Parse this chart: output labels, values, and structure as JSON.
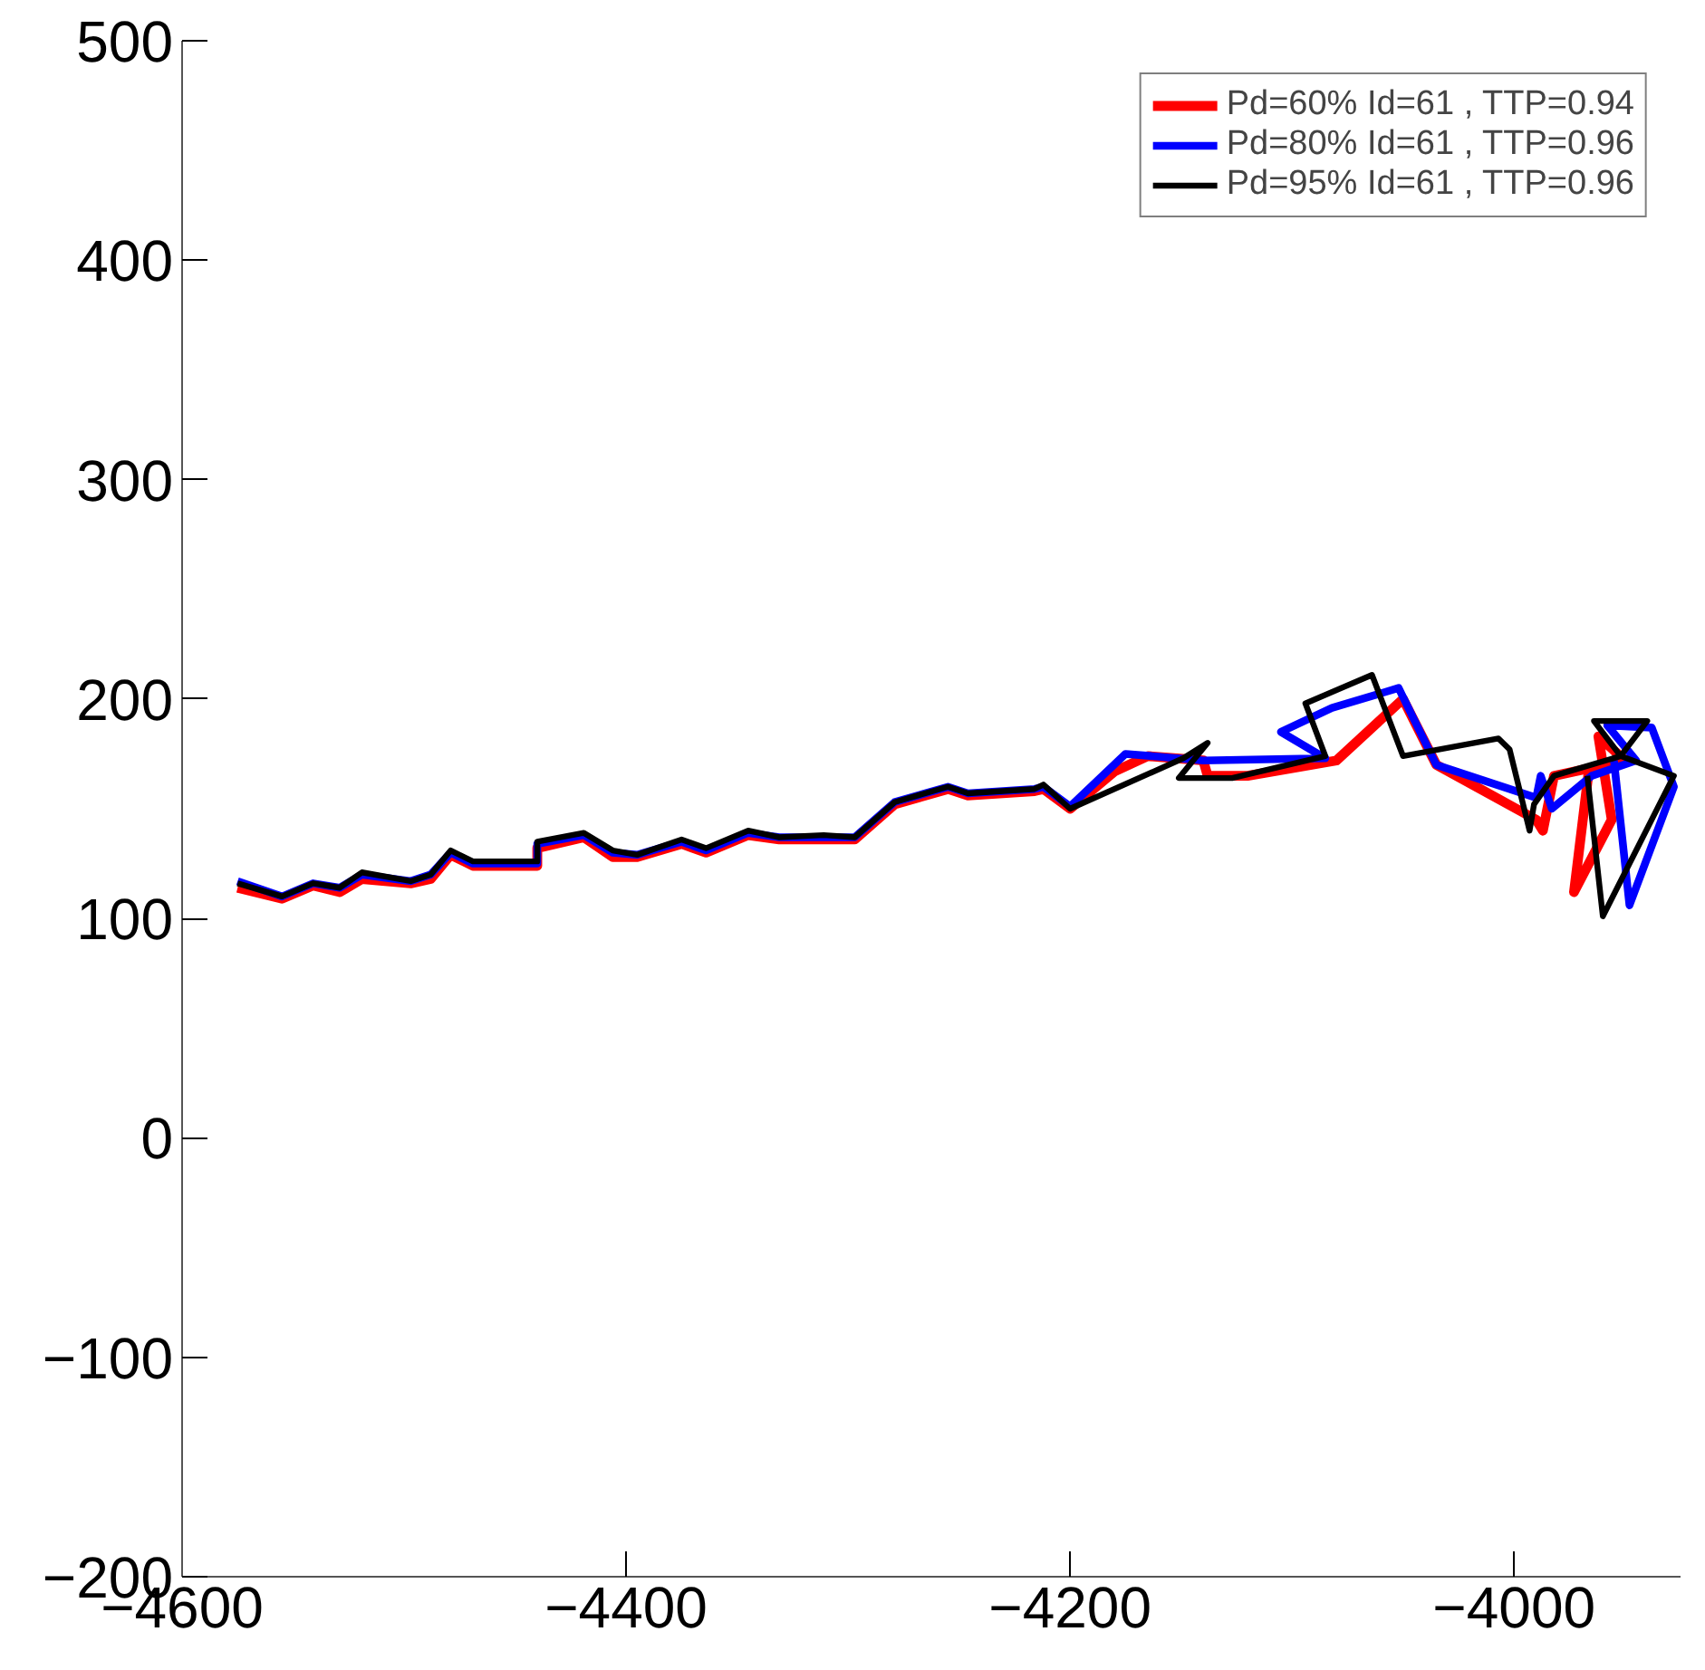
{
  "chart_data": {
    "type": "line",
    "xlim": [
      -4600,
      -3925
    ],
    "ylim": [
      -200,
      500
    ],
    "xticks": [
      -4600,
      -4400,
      -4200,
      -4000
    ],
    "yticks": [
      -200,
      -100,
      0,
      100,
      200,
      300,
      400,
      500
    ],
    "grid": false,
    "legend": "top right",
    "marker": "none",
    "line_style": "solid",
    "series": [
      {
        "name": "Pd=60% Id=61 , TTP=0.94",
        "color": "#ff0000",
        "x": [
          -4575,
          -4555,
          -4541,
          -4529,
          -4519,
          -4497,
          -4488,
          -4479,
          -4469,
          -4440,
          -4440,
          -4419,
          -4406,
          -4395,
          -4375,
          -4364,
          -4345,
          -4331,
          -4311,
          -4297,
          -4279,
          -4255,
          -4246,
          -4216,
          -4212,
          -4200,
          -4180,
          -4165,
          -4140,
          -4138,
          -4120,
          -4080,
          -4050,
          -4035,
          -3990,
          -3987,
          -3982,
          -3950,
          -3962,
          -3956,
          -3973,
          -3966
        ],
        "values": [
          114,
          109,
          115,
          112,
          118,
          116,
          118,
          129,
          124,
          124,
          132,
          137,
          128,
          128,
          134,
          130,
          138,
          136,
          136,
          136,
          152,
          159,
          156,
          158,
          159,
          150,
          167,
          174,
          172,
          165,
          165,
          172,
          200,
          170,
          145,
          140,
          165,
          172,
          183,
          145,
          112,
          170
        ]
      },
      {
        "name": "Pd=80% Id=61 , TTP=0.96",
        "color": "#0000ff",
        "x": [
          -4575,
          -4555,
          -4541,
          -4529,
          -4519,
          -4497,
          -4488,
          -4479,
          -4469,
          -4440,
          -4440,
          -4419,
          -4406,
          -4395,
          -4375,
          -4364,
          -4345,
          -4331,
          -4311,
          -4297,
          -4279,
          -4255,
          -4246,
          -4216,
          -4212,
          -4200,
          -4175,
          -4140,
          -4085,
          -4105,
          -4082,
          -4052,
          -4035,
          -3990,
          -3988,
          -3983,
          -3965,
          -3945,
          -3958,
          -3938,
          -3928,
          -3948,
          -3955
        ],
        "values": [
          117,
          110,
          116,
          114,
          120,
          117,
          120,
          130,
          125,
          125,
          134,
          138,
          130,
          129,
          135,
          131,
          139,
          137,
          137,
          137,
          153,
          160,
          157,
          159,
          160,
          151,
          175,
          172,
          173,
          185,
          196,
          205,
          170,
          155,
          165,
          150,
          165,
          172,
          188,
          187,
          160,
          106,
          172
        ]
      },
      {
        "name": "Pd=95% Id=61 , TTP=0.96",
        "color": "#000000",
        "x": [
          -4575,
          -4555,
          -4541,
          -4529,
          -4519,
          -4497,
          -4488,
          -4479,
          -4469,
          -4440,
          -4440,
          -4419,
          -4406,
          -4395,
          -4375,
          -4364,
          -4345,
          -4331,
          -4311,
          -4297,
          -4279,
          -4255,
          -4246,
          -4216,
          -4212,
          -4200,
          -4149,
          -4138,
          -4151,
          -4127,
          -4085,
          -4094,
          -4064,
          -4050,
          -4007,
          -4002,
          -3993,
          -3991,
          -3982,
          -3952,
          -3940,
          -3964,
          -3952,
          -3928,
          -3960,
          -3967
        ],
        "values": [
          116,
          110,
          116,
          114,
          121,
          117,
          120,
          131,
          126,
          126,
          135,
          139,
          131,
          129,
          136,
          132,
          140,
          137,
          138,
          137,
          153,
          160,
          157,
          159,
          161,
          150,
          173,
          180,
          164,
          164,
          174,
          198,
          211,
          174,
          182,
          177,
          140,
          152,
          165,
          174,
          190,
          190,
          174,
          165,
          101,
          165
        ]
      }
    ]
  }
}
